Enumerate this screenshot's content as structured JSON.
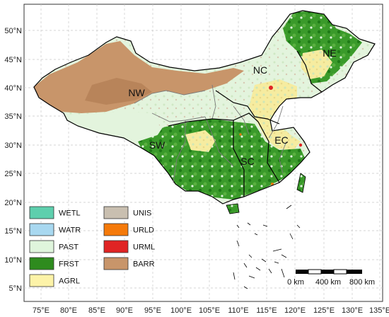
{
  "axes": {
    "x_ticks": [
      "75°E",
      "80°E",
      "85°E",
      "90°E",
      "95°E",
      "100°E",
      "105°E",
      "110°E",
      "115°E",
      "120°E",
      "125°E",
      "130°E",
      "135°E"
    ],
    "y_ticks": [
      "50°N",
      "45°N",
      "40°N",
      "35°N",
      "30°N",
      "25°N",
      "20°N",
      "15°N",
      "10°N",
      "5°N"
    ]
  },
  "regions": [
    {
      "code": "NE"
    },
    {
      "code": "NC"
    },
    {
      "code": "NW"
    },
    {
      "code": "EC"
    },
    {
      "code": "SW"
    },
    {
      "code": "SC"
    }
  ],
  "legend": [
    {
      "code": "WETL",
      "color": "#5ecfad"
    },
    {
      "code": "WATR",
      "color": "#a8d8f0"
    },
    {
      "code": "PAST",
      "color": "#dff5dc"
    },
    {
      "code": "FRST",
      "color": "#2e8b1e"
    },
    {
      "code": "AGRL",
      "color": "#fdf3a8"
    },
    {
      "code": "UNIS",
      "color": "#c9bfb0"
    },
    {
      "code": "URLD",
      "color": "#f57a0a"
    },
    {
      "code": "URML",
      "color": "#e02424"
    },
    {
      "code": "BARR",
      "color": "#c8956a"
    }
  ],
  "scale_bar": {
    "labels": [
      "0 km",
      "400 km",
      "800 km"
    ]
  },
  "colors": {
    "grid": "#c8c8c8",
    "boundary": "#000000",
    "province_border": "#7a7a7a"
  }
}
